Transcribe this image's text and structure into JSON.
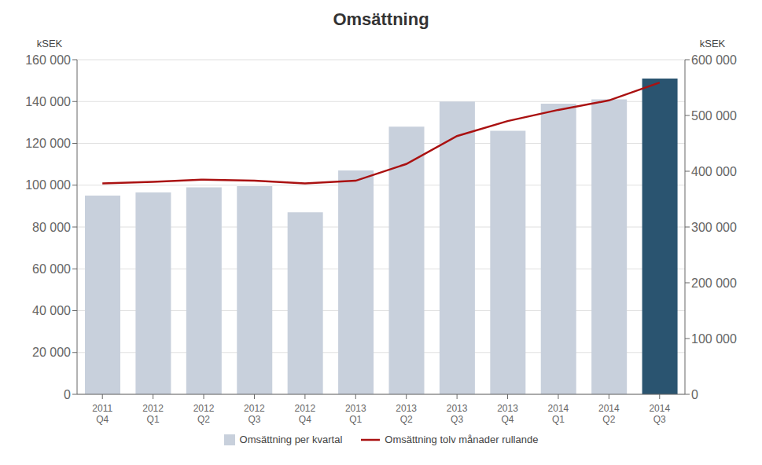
{
  "chart_data": {
    "type": "bar",
    "title": "Omsättning",
    "categories": [
      "2011\nQ4",
      "2012\nQ1",
      "2012\nQ2",
      "2012\nQ3",
      "2012\nQ4",
      "2013\nQ1",
      "2013\nQ2",
      "2013\nQ3",
      "2013\nQ4",
      "2014\nQ1",
      "2014\nQ2",
      "2014\nQ3"
    ],
    "series": [
      {
        "name": "Omsättning per kvartal",
        "type": "bar",
        "colors": [
          "#c8d0dc",
          "#c8d0dc",
          "#c8d0dc",
          "#c8d0dc",
          "#c8d0dc",
          "#c8d0dc",
          "#c8d0dc",
          "#c8d0dc",
          "#c8d0dc",
          "#c8d0dc",
          "#c8d0dc",
          "#2a5470"
        ],
        "values": [
          95000,
          96500,
          99000,
          99500,
          87000,
          107000,
          128000,
          140000,
          126000,
          139000,
          141000,
          151000
        ]
      },
      {
        "name": "Omsättning tolv månader rullande",
        "type": "line",
        "axis": "y2",
        "color": "#aa1111",
        "values": [
          378000,
          381000,
          385000,
          383000,
          378000,
          383000,
          413000,
          463000,
          490000,
          510000,
          527000,
          559000
        ]
      }
    ],
    "ylim": [
      0,
      160000
    ],
    "yticks": [
      0,
      {
        "value": 20000,
        "label": "20 000"
      },
      {
        "value": 40000,
        "label": "40 000"
      },
      {
        "value": 60000,
        "label": "60 000"
      },
      {
        "value": 80000,
        "label": "80 000"
      },
      {
        "value": 100000,
        "label": "100 000"
      },
      {
        "value": 120000,
        "label": "120 000"
      },
      {
        "value": 140000,
        "label": "140 000"
      },
      {
        "value": 160000,
        "label": "160 000"
      }
    ],
    "y2lim": [
      0,
      600000
    ],
    "y2ticks": [
      0,
      {
        "value": 100000,
        "label": "100 000"
      },
      {
        "value": 200000,
        "label": "200 000"
      },
      {
        "value": 300000,
        "label": "300 000"
      },
      {
        "value": 400000,
        "label": "400 000"
      },
      {
        "value": 500000,
        "label": "500 000"
      },
      {
        "value": 600000,
        "label": "600 000"
      }
    ],
    "ylabel": "kSEK",
    "y2label": "kSEK",
    "grid": true,
    "legend": "bottom"
  }
}
